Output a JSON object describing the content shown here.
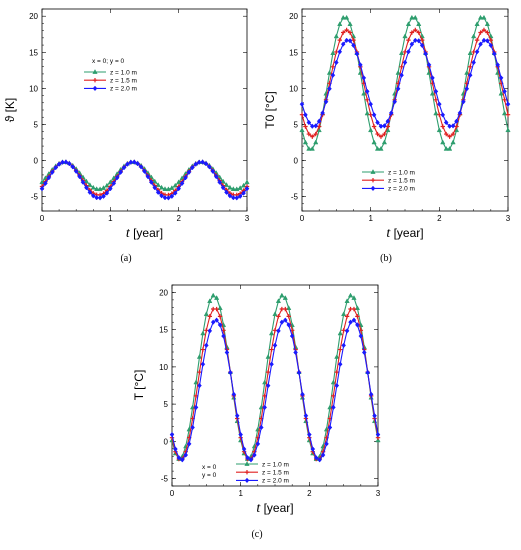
{
  "panel_labels": [
    "(a)",
    "(b)",
    "(c)"
  ],
  "chart_data": [
    {
      "type": "line",
      "id": "a",
      "title": "",
      "xlabel": "t [year]",
      "ylabel": "ϑ [K]",
      "xlim": [
        0,
        3
      ],
      "ylim": [
        -7,
        21
      ],
      "xticks": [
        0,
        1,
        2,
        3
      ],
      "yticks": [
        -5,
        0,
        5,
        10,
        15,
        20
      ],
      "annotation": "x = 0;   y = 0",
      "legend_position": "center",
      "colors": [
        "#2e9e6e",
        "#e02020",
        "#1a1aff"
      ],
      "series": [
        {
          "name": "z = 1.0 m",
          "marker": "triangle",
          "mean": -2.1,
          "amplitude": 1.9,
          "phase": 0.33
        },
        {
          "name": "z = 1.5 m",
          "marker": "cross",
          "mean": -2.5,
          "amplitude": 2.3,
          "phase": 0.33
        },
        {
          "name": "z = 2.0 m",
          "marker": "diamond",
          "mean": -2.7,
          "amplitude": 2.5,
          "phase": 0.33
        }
      ]
    },
    {
      "type": "line",
      "id": "b",
      "title": "",
      "xlabel": "t [year]",
      "ylabel": "T0 [°C]",
      "xlim": [
        0,
        3
      ],
      "ylim": [
        -7,
        21
      ],
      "xticks": [
        0,
        1,
        2,
        3
      ],
      "yticks": [
        -5,
        0,
        5,
        10,
        15,
        20
      ],
      "legend_position": "bottom-right",
      "colors": [
        "#2e9e6e",
        "#e02020",
        "#1a1aff"
      ],
      "series": [
        {
          "name": "z = 1.0 m",
          "marker": "triangle",
          "mean": 10.7,
          "amplitude": 9.2,
          "phase": 0.625
        },
        {
          "name": "z = 1.5 m",
          "marker": "cross",
          "mean": 10.7,
          "amplitude": 7.4,
          "phase": 0.65
        },
        {
          "name": "z = 2.0 m",
          "marker": "diamond",
          "mean": 10.7,
          "amplitude": 6.0,
          "phase": 0.67
        }
      ]
    },
    {
      "type": "line",
      "id": "c",
      "title": "",
      "xlabel": "t [year]",
      "ylabel": "T [°C]",
      "xlim": [
        0,
        3
      ],
      "ylim": [
        -6,
        21
      ],
      "xticks": [
        0,
        1,
        2,
        3
      ],
      "yticks": [
        -5,
        0,
        5,
        10,
        15,
        20
      ],
      "annotation": [
        "x = 0",
        "y = 0"
      ],
      "legend_position": "bottom-right",
      "colors": [
        "#2e9e6e",
        "#e02020",
        "#1a1aff"
      ],
      "series": [
        {
          "name": "z = 1.0 m",
          "marker": "triangle",
          "mean": 8.6,
          "amplitude": 11.0,
          "phase": 0.61
        },
        {
          "name": "z = 1.5 m",
          "marker": "cross",
          "mean": 7.7,
          "amplitude": 10.2,
          "phase": 0.625
        },
        {
          "name": "z = 2.0 m",
          "marker": "diamond",
          "mean": 6.9,
          "amplitude": 9.4,
          "phase": 0.64
        }
      ]
    }
  ]
}
